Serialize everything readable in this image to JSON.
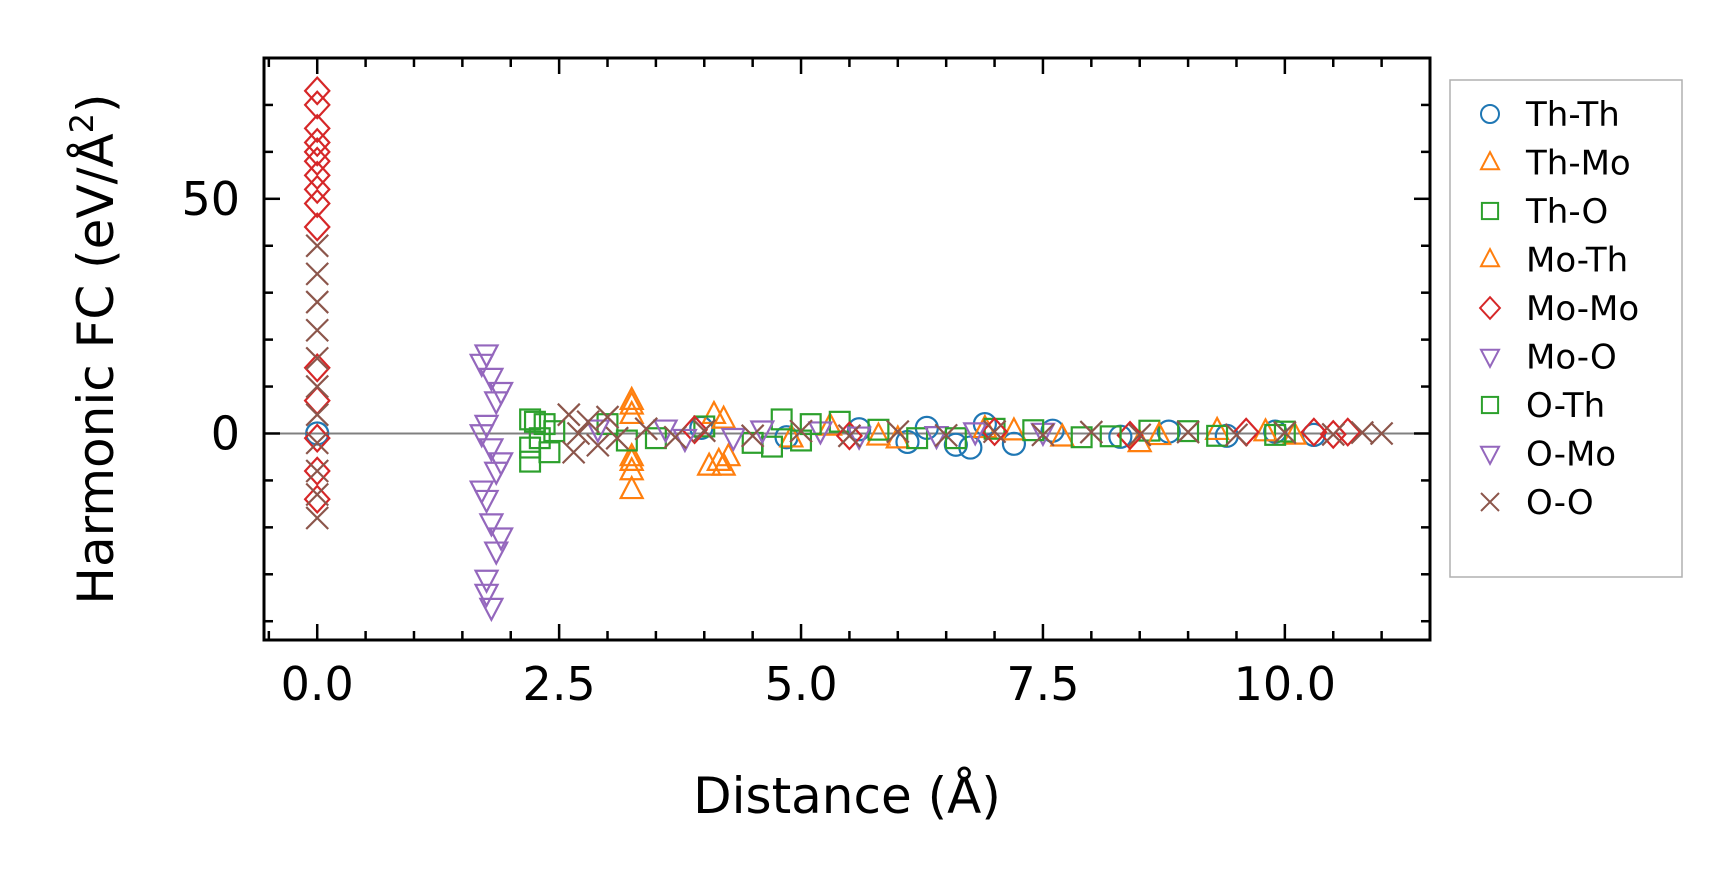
{
  "chart_data": {
    "type": "scatter",
    "xlabel": "Distance (Å)",
    "ylabel": "Harmonic FC (eV/Å",
    "ylabel_sup": "2",
    "ylabel_close": ")",
    "xlim": [
      -0.55,
      11.5
    ],
    "ylim": [
      -44,
      80
    ],
    "xticks": [
      {
        "value": 0.0,
        "label": "0.0"
      },
      {
        "value": 2.5,
        "label": "2.5"
      },
      {
        "value": 5.0,
        "label": "5.0"
      },
      {
        "value": 7.5,
        "label": "7.5"
      },
      {
        "value": 10.0,
        "label": "10.0"
      }
    ],
    "yticks": [
      {
        "value": 0,
        "label": "0"
      },
      {
        "value": 50,
        "label": "50"
      }
    ],
    "zero_line": true,
    "legend_position": "right, outside plot",
    "series": [
      {
        "name": "Th-Th",
        "marker": "circle",
        "color": "#1f77b4",
        "points": [
          [
            0.0,
            0.0
          ],
          [
            3.97,
            1.2
          ],
          [
            4.85,
            -0.8
          ],
          [
            5.6,
            0.9
          ],
          [
            6.1,
            -1.8
          ],
          [
            6.3,
            1.2
          ],
          [
            6.6,
            -2.4
          ],
          [
            6.75,
            -3.0
          ],
          [
            6.9,
            2.0
          ],
          [
            7.2,
            -2.2
          ],
          [
            7.6,
            0.6
          ],
          [
            8.3,
            -0.7
          ],
          [
            8.8,
            0.4
          ],
          [
            9.4,
            -0.5
          ],
          [
            9.9,
            0.4
          ],
          [
            10.3,
            -0.3
          ]
        ]
      },
      {
        "name": "Th-Mo",
        "marker": "triangle-up",
        "color": "#ff7f0e",
        "points": [
          [
            3.25,
            7.0
          ],
          [
            3.25,
            4.0
          ],
          [
            3.25,
            -5.0
          ],
          [
            3.25,
            -8.0
          ],
          [
            3.25,
            -12.0
          ],
          [
            4.05,
            -7.0
          ],
          [
            4.1,
            4.0
          ],
          [
            4.2,
            -7.0
          ],
          [
            4.25,
            -5.0
          ],
          [
            4.9,
            -1.0
          ],
          [
            5.3,
            1.5
          ],
          [
            6.0,
            -1.2
          ],
          [
            6.9,
            1.0
          ],
          [
            7.7,
            -0.8
          ],
          [
            8.5,
            -2.0
          ],
          [
            9.3,
            0.6
          ],
          [
            10.1,
            -0.4
          ]
        ]
      },
      {
        "name": "Th-O",
        "marker": "square",
        "color": "#2ca02c",
        "points": [
          [
            2.2,
            3.0
          ],
          [
            2.2,
            -6.0
          ],
          [
            2.3,
            -1.0
          ],
          [
            2.35,
            2.0
          ],
          [
            2.4,
            -4.0
          ],
          [
            3.0,
            2.0
          ],
          [
            3.5,
            -1.0
          ],
          [
            4.0,
            1.5
          ],
          [
            4.5,
            -2.0
          ],
          [
            4.8,
            3.0
          ],
          [
            5.0,
            -1.5
          ],
          [
            5.4,
            2.5
          ],
          [
            6.2,
            -1.0
          ],
          [
            7.0,
            1.0
          ],
          [
            7.9,
            -0.8
          ],
          [
            8.6,
            0.6
          ],
          [
            9.3,
            -0.5
          ],
          [
            10.0,
            0.4
          ]
        ]
      },
      {
        "name": "Mo-Th",
        "marker": "triangle-up",
        "color": "#ff7f0e",
        "points": [
          [
            3.25,
            6.0
          ],
          [
            3.25,
            -6.0
          ],
          [
            4.15,
            -6.0
          ],
          [
            4.2,
            3.0
          ],
          [
            5.8,
            -0.6
          ],
          [
            7.2,
            0.5
          ],
          [
            8.7,
            -0.5
          ],
          [
            9.8,
            0.3
          ]
        ]
      },
      {
        "name": "Mo-Mo",
        "marker": "diamond",
        "color": "#d62728",
        "points": [
          [
            0.0,
            73.0
          ],
          [
            0.0,
            70.0
          ],
          [
            0.0,
            65.0
          ],
          [
            0.0,
            62.0
          ],
          [
            0.0,
            60.0
          ],
          [
            0.0,
            58.0
          ],
          [
            0.0,
            55.0
          ],
          [
            0.0,
            52.0
          ],
          [
            0.0,
            49.0
          ],
          [
            0.0,
            44.0
          ],
          [
            0.0,
            14.0
          ],
          [
            0.0,
            7.0
          ],
          [
            0.0,
            -1.0
          ],
          [
            0.0,
            -8.0
          ],
          [
            0.0,
            -14.0
          ],
          [
            3.9,
            0.8
          ],
          [
            5.5,
            -0.5
          ],
          [
            7.0,
            0.4
          ],
          [
            8.4,
            -0.4
          ],
          [
            9.6,
            0.3
          ],
          [
            10.3,
            0.3
          ],
          [
            10.5,
            -0.2
          ],
          [
            10.65,
            0.3
          ]
        ]
      },
      {
        "name": "Mo-O",
        "marker": "triangle-down",
        "color": "#9467bd",
        "points": [
          [
            1.75,
            17.0
          ],
          [
            1.8,
            12.0
          ],
          [
            1.85,
            7.0
          ],
          [
            1.75,
            2.0
          ],
          [
            1.8,
            -3.0
          ],
          [
            1.85,
            -8.0
          ],
          [
            1.75,
            -14.0
          ],
          [
            1.8,
            -19.0
          ],
          [
            1.85,
            -25.0
          ],
          [
            1.75,
            -31.0
          ],
          [
            1.8,
            -37.0
          ],
          [
            3.6,
            1.0
          ],
          [
            4.3,
            -0.8
          ],
          [
            5.2,
            0.6
          ],
          [
            6.4,
            -0.4
          ],
          [
            7.5,
            0.3
          ]
        ]
      },
      {
        "name": "O-Th",
        "marker": "square",
        "color": "#2ca02c",
        "points": [
          [
            2.2,
            -3.0
          ],
          [
            2.25,
            2.5
          ],
          [
            2.45,
            0.5
          ],
          [
            3.2,
            -1.5
          ],
          [
            4.7,
            -2.8
          ],
          [
            5.1,
            2.0
          ],
          [
            5.8,
            0.8
          ],
          [
            6.6,
            -1.0
          ],
          [
            7.4,
            0.7
          ],
          [
            8.2,
            -0.6
          ],
          [
            9.0,
            0.5
          ],
          [
            9.9,
            -0.3
          ]
        ]
      },
      {
        "name": "O-Mo",
        "marker": "triangle-down",
        "color": "#9467bd",
        "points": [
          [
            1.7,
            15.0
          ],
          [
            1.9,
            9.0
          ],
          [
            1.7,
            0.0
          ],
          [
            1.9,
            -6.0
          ],
          [
            1.7,
            -12.0
          ],
          [
            1.9,
            -22.0
          ],
          [
            1.75,
            -34.0
          ],
          [
            2.9,
            1.0
          ],
          [
            3.8,
            -1.0
          ],
          [
            4.6,
            0.8
          ],
          [
            5.6,
            -0.5
          ],
          [
            6.8,
            0.4
          ]
        ]
      },
      {
        "name": "O-O",
        "marker": "x",
        "color": "#8c564b",
        "points": [
          [
            0.0,
            40.0
          ],
          [
            0.0,
            34.0
          ],
          [
            0.0,
            28.0
          ],
          [
            0.0,
            22.0
          ],
          [
            0.0,
            16.0
          ],
          [
            0.0,
            10.0
          ],
          [
            0.0,
            4.0
          ],
          [
            0.0,
            -2.0
          ],
          [
            0.0,
            -8.0
          ],
          [
            0.0,
            -13.0
          ],
          [
            0.0,
            -18.0
          ],
          [
            2.6,
            4.0
          ],
          [
            2.65,
            -4.0
          ],
          [
            2.7,
            0.0
          ],
          [
            2.8,
            2.5
          ],
          [
            2.9,
            -2.5
          ],
          [
            3.0,
            3.5
          ],
          [
            3.1,
            -1.0
          ],
          [
            3.4,
            1.0
          ],
          [
            3.7,
            -0.8
          ],
          [
            4.0,
            0.6
          ],
          [
            4.5,
            -0.5
          ],
          [
            5.0,
            0.5
          ],
          [
            5.5,
            -0.5
          ],
          [
            6.0,
            0.4
          ],
          [
            6.5,
            -0.4
          ],
          [
            7.0,
            0.4
          ],
          [
            7.5,
            -0.3
          ],
          [
            8.0,
            0.3
          ],
          [
            8.5,
            -0.3
          ],
          [
            9.0,
            0.3
          ],
          [
            9.5,
            -0.3
          ],
          [
            10.0,
            0.2
          ],
          [
            10.5,
            -0.2
          ],
          [
            10.8,
            0.2
          ],
          [
            11.0,
            0.0
          ]
        ]
      }
    ]
  }
}
